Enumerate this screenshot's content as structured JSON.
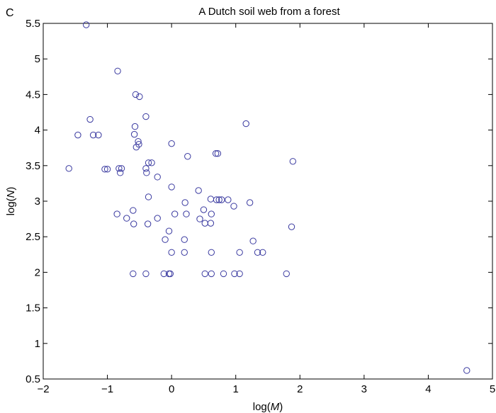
{
  "panel_letter": "C",
  "chart_data": {
    "type": "scatter",
    "title": "A Dutch soil web from a forest",
    "xlabel": {
      "prefix": "log(",
      "var": "M",
      "suffix": ")"
    },
    "ylabel": {
      "prefix": "log(",
      "var": "N",
      "suffix": ")"
    },
    "xlim": [
      -2,
      5
    ],
    "ylim": [
      0.5,
      5.5
    ],
    "xticks": [
      -2,
      -1,
      0,
      1,
      2,
      3,
      4,
      5
    ],
    "yticks": [
      0.5,
      1,
      1.5,
      2,
      2.5,
      3,
      3.5,
      4,
      4.5,
      5,
      5.5
    ],
    "xtick_labels": [
      "−2",
      "−1",
      "0",
      "1",
      "2",
      "3",
      "4",
      "5"
    ],
    "ytick_labels": [
      "0.5",
      "1",
      "1.5",
      "2",
      "2.5",
      "3",
      "3.5",
      "4",
      "4.5",
      "5",
      "5.5"
    ],
    "grid": false,
    "marker_color": "#3a3aa0",
    "points": [
      [
        -1.33,
        5.48
      ],
      [
        -0.84,
        4.83
      ],
      [
        -0.56,
        4.5
      ],
      [
        -0.5,
        4.47
      ],
      [
        -1.27,
        4.15
      ],
      [
        -0.4,
        4.19
      ],
      [
        1.16,
        4.09
      ],
      [
        -1.46,
        3.93
      ],
      [
        -1.22,
        3.93
      ],
      [
        -1.14,
        3.93
      ],
      [
        -0.57,
        4.05
      ],
      [
        -0.58,
        3.94
      ],
      [
        -0.52,
        3.84
      ],
      [
        -0.51,
        3.8
      ],
      [
        -0.55,
        3.76
      ],
      [
        0.0,
        3.81
      ],
      [
        0.25,
        3.63
      ],
      [
        0.69,
        3.67
      ],
      [
        0.72,
        3.67
      ],
      [
        1.89,
        3.56
      ],
      [
        -1.6,
        3.46
      ],
      [
        -1.04,
        3.45
      ],
      [
        -1.0,
        3.45
      ],
      [
        -0.82,
        3.46
      ],
      [
        -0.78,
        3.46
      ],
      [
        -0.8,
        3.4
      ],
      [
        -0.4,
        3.46
      ],
      [
        -0.39,
        3.4
      ],
      [
        -0.36,
        3.54
      ],
      [
        -0.31,
        3.54
      ],
      [
        -0.22,
        3.34
      ],
      [
        0.0,
        3.2
      ],
      [
        0.42,
        3.15
      ],
      [
        -0.36,
        3.06
      ],
      [
        0.61,
        3.03
      ],
      [
        0.7,
        3.02
      ],
      [
        0.74,
        3.02
      ],
      [
        0.78,
        3.02
      ],
      [
        0.88,
        3.02
      ],
      [
        0.97,
        2.93
      ],
      [
        1.22,
        2.98
      ],
      [
        0.21,
        2.98
      ],
      [
        -0.85,
        2.82
      ],
      [
        -0.6,
        2.87
      ],
      [
        -0.7,
        2.76
      ],
      [
        -0.59,
        2.68
      ],
      [
        -0.37,
        2.68
      ],
      [
        -0.22,
        2.76
      ],
      [
        0.05,
        2.82
      ],
      [
        0.23,
        2.82
      ],
      [
        0.5,
        2.88
      ],
      [
        0.44,
        2.75
      ],
      [
        0.52,
        2.69
      ],
      [
        0.62,
        2.82
      ],
      [
        0.61,
        2.69
      ],
      [
        1.87,
        2.64
      ],
      [
        -0.04,
        2.58
      ],
      [
        -0.1,
        2.46
      ],
      [
        0.2,
        2.46
      ],
      [
        1.27,
        2.44
      ],
      [
        0.0,
        2.28
      ],
      [
        0.2,
        2.28
      ],
      [
        0.62,
        2.28
      ],
      [
        1.06,
        2.28
      ],
      [
        1.34,
        2.28
      ],
      [
        1.42,
        2.28
      ],
      [
        -0.6,
        1.98
      ],
      [
        -0.4,
        1.98
      ],
      [
        -0.12,
        1.98
      ],
      [
        -0.04,
        1.98
      ],
      [
        -0.02,
        1.98
      ],
      [
        0.52,
        1.98
      ],
      [
        0.62,
        1.98
      ],
      [
        0.81,
        1.98
      ],
      [
        0.98,
        1.98
      ],
      [
        1.06,
        1.98
      ],
      [
        1.79,
        1.98
      ],
      [
        4.6,
        0.62
      ]
    ]
  }
}
